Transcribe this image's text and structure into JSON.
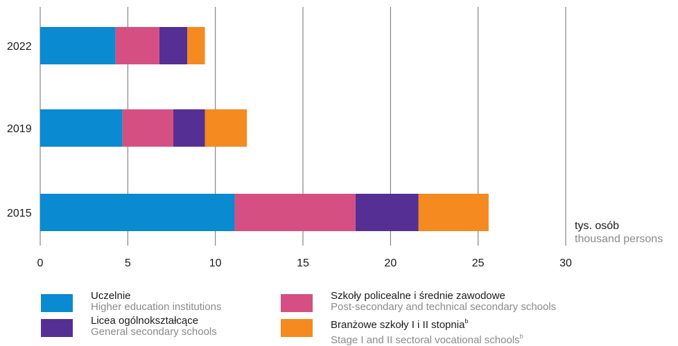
{
  "chart_data": {
    "type": "bar",
    "orientation": "horizontal",
    "stacked": true,
    "categories": [
      "2022",
      "2019",
      "2015"
    ],
    "series": [
      {
        "name": "Uczelnie",
        "name_en": "Higher education institutions",
        "color": "#0a8ad0",
        "values": [
          4.3,
          4.7,
          11.1
        ]
      },
      {
        "name": "Szkoły policealne i średnie zawodowe",
        "name_en": "Post-secondary and technical secondary schools",
        "color": "#d64f83",
        "values": [
          2.5,
          2.9,
          6.9
        ]
      },
      {
        "name": "Licea ogólnokształcące",
        "name_en": "General secondary schools",
        "color": "#552f93",
        "values": [
          1.6,
          1.8,
          3.6
        ]
      },
      {
        "name": "Branżowe szkoły I i II stopnia",
        "name_en": "Stage I and II sectoral vocational schools",
        "sup": "b",
        "color": "#f48a20",
        "values": [
          1.0,
          2.4,
          4.0
        ]
      }
    ],
    "xlim": [
      0,
      30
    ],
    "xticks": [
      0,
      5,
      10,
      15,
      20,
      25,
      30
    ],
    "unit_label": "tys. osób",
    "unit_label_en": "thousand persons",
    "grid": true,
    "legend_position": "bottom"
  }
}
